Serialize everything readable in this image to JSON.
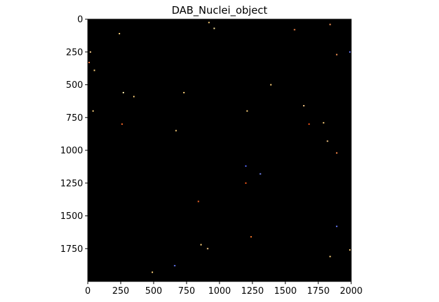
{
  "chart_data": {
    "type": "heatmap",
    "title": "DAB_Nuclei_object",
    "xlabel": "",
    "ylabel": "",
    "xlim": [
      0,
      2000
    ],
    "ylim": [
      2000,
      0
    ],
    "x_ticks": [
      0,
      250,
      500,
      750,
      1000,
      1250,
      1500,
      1750,
      2000
    ],
    "y_ticks": [
      0,
      250,
      500,
      750,
      1000,
      1250,
      1500,
      1750
    ],
    "background_color": "#000000",
    "grid": false,
    "legend": "none",
    "objects": [
      {
        "x": 960,
        "y": 70,
        "color": "#ffe9a0"
      },
      {
        "x": 240,
        "y": 110,
        "color": "#ffd27a"
      },
      {
        "x": 1570,
        "y": 80,
        "color": "#ff8a4a"
      },
      {
        "x": 1840,
        "y": 40,
        "color": "#ff9a5a"
      },
      {
        "x": 920,
        "y": 25,
        "color": "#ffd27a"
      },
      {
        "x": 20,
        "y": 250,
        "color": "#ffcf8a"
      },
      {
        "x": 1990,
        "y": 250,
        "color": "#6a7cff"
      },
      {
        "x": 1890,
        "y": 270,
        "color": "#ff9a5a"
      },
      {
        "x": 10,
        "y": 330,
        "color": "#ff7a3a"
      },
      {
        "x": 50,
        "y": 390,
        "color": "#ffd27a"
      },
      {
        "x": 270,
        "y": 560,
        "color": "#fff0b0"
      },
      {
        "x": 350,
        "y": 590,
        "color": "#ffd27a"
      },
      {
        "x": 730,
        "y": 560,
        "color": "#ffd27a"
      },
      {
        "x": 1390,
        "y": 500,
        "color": "#ffd27a"
      },
      {
        "x": 1640,
        "y": 660,
        "color": "#ffcf8a"
      },
      {
        "x": 1210,
        "y": 700,
        "color": "#ffd27a"
      },
      {
        "x": 40,
        "y": 700,
        "color": "#ffd27a"
      },
      {
        "x": 260,
        "y": 800,
        "color": "#ff6a2a"
      },
      {
        "x": 1680,
        "y": 800,
        "color": "#ff5a1a"
      },
      {
        "x": 1790,
        "y": 790,
        "color": "#ffd27a"
      },
      {
        "x": 670,
        "y": 850,
        "color": "#ffd27a"
      },
      {
        "x": 1890,
        "y": 1020,
        "color": "#ff8a4a"
      },
      {
        "x": 1200,
        "y": 1120,
        "color": "#5a6cff"
      },
      {
        "x": 1310,
        "y": 1180,
        "color": "#7a8cff"
      },
      {
        "x": 1200,
        "y": 1250,
        "color": "#ff5a1a"
      },
      {
        "x": 840,
        "y": 1390,
        "color": "#ff6a2a"
      },
      {
        "x": 1240,
        "y": 1660,
        "color": "#ff7a2a"
      },
      {
        "x": 1890,
        "y": 1580,
        "color": "#6a7cff"
      },
      {
        "x": 860,
        "y": 1720,
        "color": "#ffd27a"
      },
      {
        "x": 910,
        "y": 1750,
        "color": "#ffcf8a"
      },
      {
        "x": 1840,
        "y": 1810,
        "color": "#ffd27a"
      },
      {
        "x": 1990,
        "y": 1760,
        "color": "#ffd27a"
      },
      {
        "x": 660,
        "y": 1880,
        "color": "#6a7cff"
      },
      {
        "x": 490,
        "y": 1930,
        "color": "#ffd27a"
      },
      {
        "x": 1820,
        "y": 930,
        "color": "#ffcf8a"
      }
    ]
  }
}
